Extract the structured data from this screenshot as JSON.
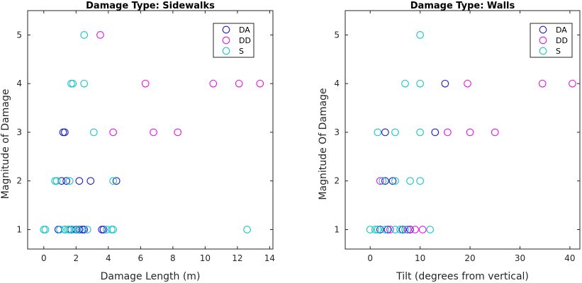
{
  "colors": {
    "DA": "#1f1fcc",
    "DD": "#e619e6",
    "S": "#19c7c7",
    "axis": "#262626",
    "legend_border": "#262626",
    "text": "#262626"
  },
  "chart_data": [
    {
      "type": "scatter",
      "title": "Damage Type: Sidewalks",
      "xlabel": "Damage Length (m)",
      "ylabel": "Magnitude of Damage",
      "xlim": [
        -1,
        14.2
      ],
      "ylim": [
        0.6,
        5.5
      ],
      "xticks": [
        0,
        2,
        4,
        6,
        8,
        10,
        12,
        14
      ],
      "yticks": [
        1,
        2,
        3,
        4,
        5
      ],
      "grid": false,
      "legend_position": "top-right",
      "series": [
        {
          "name": "DA",
          "x": [
            0.9,
            1.3,
            1.7,
            2.0,
            2.2,
            2.4,
            2.5,
            3.6,
            3.7,
            1.1,
            1.4,
            2.2,
            2.9,
            4.5,
            1.2,
            1.3
          ],
          "y": [
            1,
            1,
            1,
            1,
            1,
            1,
            1,
            1,
            1,
            2,
            2,
            2,
            2,
            2,
            3,
            3
          ]
        },
        {
          "name": "DD",
          "x": [
            4.3,
            6.8,
            8.3,
            6.3,
            10.5,
            12.1,
            13.4,
            3.5
          ],
          "y": [
            3,
            3,
            3,
            4,
            4,
            4,
            4,
            5
          ]
        },
        {
          "name": "S",
          "x": [
            0.0,
            0.1,
            1.0,
            1.3,
            1.5,
            1.6,
            1.9,
            2.1,
            2.7,
            3.9,
            4.2,
            4.3,
            12.6,
            0.7,
            0.8,
            1.6,
            4.3,
            3.1,
            1.7,
            1.8,
            2.5,
            2.5
          ],
          "y": [
            1,
            1,
            1,
            1,
            1,
            1,
            1,
            1,
            1,
            1,
            1,
            1,
            1,
            2,
            2,
            2,
            2,
            3,
            4,
            4,
            4,
            5
          ]
        }
      ]
    },
    {
      "type": "scatter",
      "title": "Damage Type: Walls",
      "xlabel": "Tilt (degrees from vertical)",
      "ylabel": "Magnitude Of Damage",
      "xlim": [
        -5,
        42
      ],
      "ylim": [
        0.6,
        5.5
      ],
      "xticks": [
        0,
        10,
        20,
        30,
        40
      ],
      "yticks": [
        1,
        2,
        3,
        4,
        5
      ],
      "grid": false,
      "legend_position": "top-right",
      "series": [
        {
          "name": "DA",
          "x": [
            2.0,
            3.5,
            6.5,
            8.0,
            3.0,
            4.5,
            3.0,
            13.0,
            15.0
          ],
          "y": [
            1,
            1,
            1,
            1,
            2,
            2,
            3,
            3,
            4
          ]
        },
        {
          "name": "DD",
          "x": [
            4.0,
            7.5,
            9.0,
            10.5,
            2.0,
            15.5,
            20.0,
            25.0,
            19.5,
            34.5,
            40.5
          ],
          "y": [
            1,
            1,
            1,
            1,
            2,
            3,
            3,
            3,
            4,
            4,
            4
          ]
        },
        {
          "name": "S",
          "x": [
            0.0,
            1.0,
            1.5,
            3.0,
            5.0,
            6.0,
            7.0,
            12.0,
            2.5,
            5.0,
            8.0,
            10.0,
            1.5,
            5.0,
            10.0,
            7.0,
            10.0,
            10.0
          ],
          "y": [
            1,
            1,
            1,
            1,
            1,
            1,
            1,
            1,
            2,
            2,
            2,
            2,
            3,
            3,
            3,
            4,
            4,
            5
          ]
        }
      ]
    }
  ]
}
